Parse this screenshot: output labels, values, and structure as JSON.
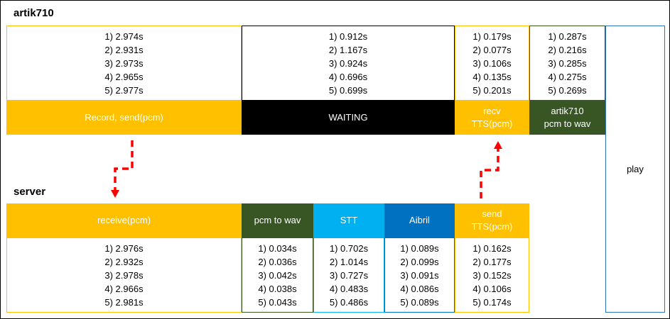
{
  "artik_title": "artik710",
  "server_title": "server",
  "artik": {
    "record": {
      "label": "Record, send(pcm)",
      "times": [
        "1) 2.974s",
        "2) 2.931s",
        "3) 2.973s",
        "4) 2.965s",
        "5) 2.977s"
      ]
    },
    "waiting": {
      "label": "WAITING",
      "times": [
        "1) 0.912s",
        "2) 1.167s",
        "3) 0.924s",
        "4) 0.696s",
        "5) 0.699s"
      ]
    },
    "recv": {
      "label_line1": "recv",
      "label_line2": "TTS(pcm)",
      "times": [
        "1) 0.179s",
        "2) 0.077s",
        "3) 0.106s",
        "4) 0.135s",
        "5) 0.201s"
      ]
    },
    "wav": {
      "label_line1": "artik710",
      "label_line2": "pcm to wav",
      "times": [
        "1) 0.287s",
        "2) 0.216s",
        "3) 0.285s",
        "4) 0.275s",
        "5) 0.269s"
      ]
    }
  },
  "play_label": "play",
  "server": {
    "receive": {
      "label": "receive(pcm)",
      "times": [
        "1) 2.976s",
        "2) 2.932s",
        "3) 2.978s",
        "4) 2.966s",
        "5) 2.981s"
      ]
    },
    "wav": {
      "label": "pcm to wav",
      "times": [
        "1) 0.034s",
        "2) 0.036s",
        "3) 0.042s",
        "4) 0.038s",
        "5) 0.043s"
      ]
    },
    "stt": {
      "label": "STT",
      "times": [
        "1) 0.702s",
        "2) 1.014s",
        "3) 0.727s",
        "4) 0.483s",
        "5) 0.486s"
      ]
    },
    "aibril": {
      "label": "Aibril",
      "times": [
        "1) 0.089s",
        "2) 0.099s",
        "3) 0.091s",
        "4) 0.086s",
        "5) 0.089s"
      ]
    },
    "send": {
      "label_line1": "send",
      "label_line2": "TTS(pcm)",
      "times": [
        "1) 0.162s",
        "2) 0.177s",
        "3) 0.152s",
        "4) 0.106s",
        "5) 0.174s"
      ]
    }
  },
  "colors": {
    "yellow": "#FFC000",
    "black": "#000000",
    "green": "#375623",
    "cyan": "#00B0F0",
    "blue": "#0070C0",
    "arrow": "#FF0000"
  }
}
